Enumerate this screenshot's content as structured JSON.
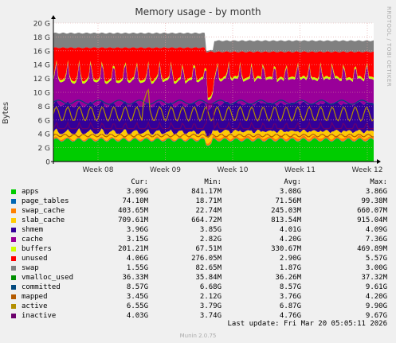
{
  "chart_data": {
    "type": "area",
    "title": "Memory usage - by month",
    "ylabel": "Bytes",
    "ylim": [
      0,
      20
    ],
    "y_unit": "G",
    "y_ticks": [
      "0",
      "2 G",
      "4 G",
      "6 G",
      "8 G",
      "10 G",
      "12 G",
      "14 G",
      "16 G",
      "18 G",
      "20 G"
    ],
    "x_ticks": [
      "Week 08",
      "Week 09",
      "Week 10",
      "Week 11",
      "Week 12"
    ],
    "grid": true,
    "stacked_series": [
      {
        "name": "apps",
        "color": "#00cc00",
        "avg": 3.08
      },
      {
        "name": "page_tables",
        "color": "#0066b3",
        "avg": 0.07
      },
      {
        "name": "swap_cache",
        "color": "#ff8000",
        "avg": 0.245
      },
      {
        "name": "slab_cache",
        "color": "#ffcc00",
        "avg": 0.81
      },
      {
        "name": "shmem",
        "color": "#330099",
        "avg": 4.01
      },
      {
        "name": "cache",
        "color": "#990099",
        "avg": 4.2
      },
      {
        "name": "buffers",
        "color": "#ccff00",
        "avg": 0.33
      },
      {
        "name": "unused",
        "color": "#ff0000",
        "avg": 2.9
      },
      {
        "name": "swap",
        "color": "#808080",
        "avg": 1.87
      }
    ],
    "line_series": [
      {
        "name": "vmalloc_used",
        "color": "#008f00",
        "avg": 0.036
      },
      {
        "name": "committed",
        "color": "#00487d",
        "avg": 8.57
      },
      {
        "name": "mapped",
        "color": "#b35a00",
        "avg": 3.76
      },
      {
        "name": "active",
        "color": "#b38f00",
        "avg": 6.87
      },
      {
        "name": "inactive",
        "color": "#6b006b",
        "avg": 4.76
      }
    ]
  },
  "legend": {
    "headers": {
      "cur": "Cur:",
      "min": "Min:",
      "avg": "Avg:",
      "max": "Max:"
    },
    "rows": [
      {
        "name": "apps",
        "color": "#00cc00",
        "cur": "3.09G",
        "min": "841.17M",
        "avg": "3.08G",
        "max": "3.86G"
      },
      {
        "name": "page_tables",
        "color": "#0066b3",
        "cur": "74.10M",
        "min": "18.71M",
        "avg": "71.56M",
        "max": "99.38M"
      },
      {
        "name": "swap_cache",
        "color": "#ff8000",
        "cur": "403.65M",
        "min": "22.74M",
        "avg": "245.03M",
        "max": "660.07M"
      },
      {
        "name": "slab_cache",
        "color": "#ffcc00",
        "cur": "709.61M",
        "min": "664.72M",
        "avg": "813.54M",
        "max": "915.04M"
      },
      {
        "name": "shmem",
        "color": "#330099",
        "cur": "3.96G",
        "min": "3.85G",
        "avg": "4.01G",
        "max": "4.09G"
      },
      {
        "name": "cache",
        "color": "#990099",
        "cur": "3.15G",
        "min": "2.82G",
        "avg": "4.20G",
        "max": "7.36G"
      },
      {
        "name": "buffers",
        "color": "#ccff00",
        "cur": "201.21M",
        "min": "67.51M",
        "avg": "330.67M",
        "max": "469.89M"
      },
      {
        "name": "unused",
        "color": "#ff0000",
        "cur": "4.06G",
        "min": "276.05M",
        "avg": "2.90G",
        "max": "5.57G"
      },
      {
        "name": "swap",
        "color": "#808080",
        "cur": "1.55G",
        "min": "82.65M",
        "avg": "1.87G",
        "max": "3.00G"
      },
      {
        "name": "vmalloc_used",
        "color": "#008f00",
        "cur": "36.33M",
        "min": "35.84M",
        "avg": "36.26M",
        "max": "37.32M"
      },
      {
        "name": "committed",
        "color": "#00487d",
        "cur": "8.57G",
        "min": "6.68G",
        "avg": "8.57G",
        "max": "9.61G"
      },
      {
        "name": "mapped",
        "color": "#b35a00",
        "cur": "3.45G",
        "min": "2.12G",
        "avg": "3.76G",
        "max": "4.20G"
      },
      {
        "name": "active",
        "color": "#b38f00",
        "cur": "6.55G",
        "min": "3.79G",
        "avg": "6.87G",
        "max": "9.90G"
      },
      {
        "name": "inactive",
        "color": "#6b006b",
        "cur": "4.03G",
        "min": "3.74G",
        "avg": "4.76G",
        "max": "9.67G"
      }
    ]
  },
  "footer": {
    "last_update": "Last update: Fri Mar 20 05:05:11 2026",
    "version": "Munin 2.0.75"
  },
  "watermark": "RRDTOOL / TOBI OETIKER"
}
